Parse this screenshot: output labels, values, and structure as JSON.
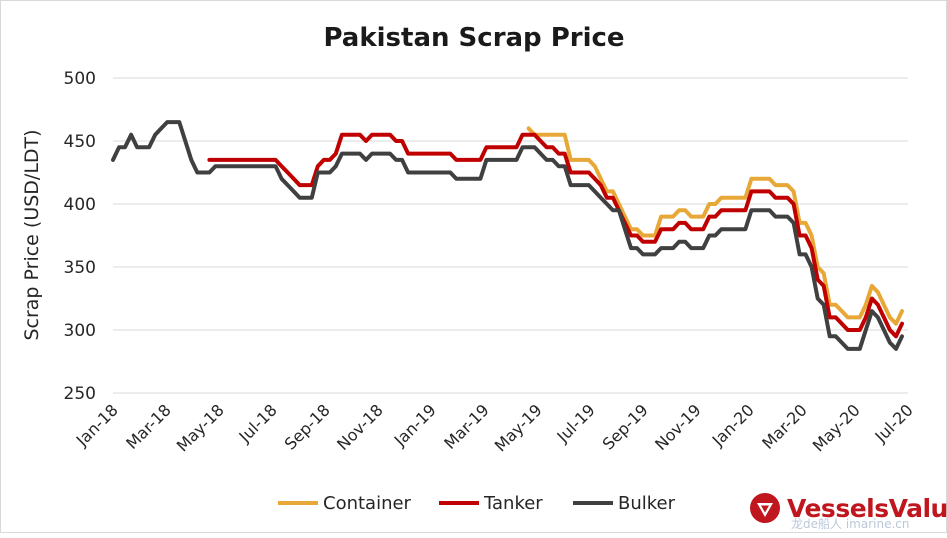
{
  "chart_data": {
    "type": "line",
    "title": "Pakistan Scrap Price",
    "ylabel": "Scrap Price (USD/LDT)",
    "xlabel": "",
    "ylim": [
      250,
      500
    ],
    "yticks": [
      250,
      300,
      350,
      400,
      450,
      500
    ],
    "grid": "horizontal",
    "legend_position": "bottom",
    "x_tick_labels": [
      "Jan-18",
      "Mar-18",
      "May-18",
      "Jul-18",
      "Sep-18",
      "Nov-18",
      "Jan-19",
      "Mar-19",
      "May-19",
      "Jul-19",
      "Sep-19",
      "Nov-19",
      "Jan-20",
      "Mar-20",
      "May-20",
      "Jul-20"
    ],
    "x_range_weeks": [
      0,
      132
    ],
    "series": [
      {
        "name": "Container",
        "color": "#e8a838",
        "points": [
          [
            69,
            460
          ],
          [
            70,
            455
          ],
          [
            71,
            455
          ],
          [
            72,
            455
          ],
          [
            73,
            455
          ],
          [
            74,
            455
          ],
          [
            75,
            455
          ],
          [
            76,
            435
          ],
          [
            77,
            435
          ],
          [
            78,
            435
          ],
          [
            79,
            435
          ],
          [
            80,
            430
          ],
          [
            81,
            420
          ],
          [
            82,
            410
          ],
          [
            83,
            410
          ],
          [
            84,
            400
          ],
          [
            85,
            390
          ],
          [
            86,
            380
          ],
          [
            87,
            380
          ],
          [
            88,
            375
          ],
          [
            89,
            375
          ],
          [
            90,
            375
          ],
          [
            91,
            390
          ],
          [
            92,
            390
          ],
          [
            93,
            390
          ],
          [
            94,
            395
          ],
          [
            95,
            395
          ],
          [
            96,
            390
          ],
          [
            97,
            390
          ],
          [
            98,
            390
          ],
          [
            99,
            400
          ],
          [
            100,
            400
          ],
          [
            101,
            405
          ],
          [
            102,
            405
          ],
          [
            103,
            405
          ],
          [
            104,
            405
          ],
          [
            105,
            405
          ],
          [
            106,
            420
          ],
          [
            107,
            420
          ],
          [
            108,
            420
          ],
          [
            109,
            420
          ],
          [
            110,
            415
          ],
          [
            111,
            415
          ],
          [
            112,
            415
          ],
          [
            113,
            410
          ],
          [
            114,
            385
          ],
          [
            115,
            385
          ],
          [
            116,
            375
          ],
          [
            117,
            350
          ],
          [
            118,
            345
          ],
          [
            119,
            320
          ],
          [
            120,
            320
          ],
          [
            121,
            315
          ],
          [
            122,
            310
          ],
          [
            123,
            310
          ],
          [
            124,
            310
          ],
          [
            125,
            320
          ],
          [
            126,
            335
          ],
          [
            127,
            330
          ],
          [
            128,
            320
          ],
          [
            129,
            310
          ],
          [
            130,
            305
          ],
          [
            131,
            315
          ]
        ]
      },
      {
        "name": "Tanker",
        "color": "#c00000",
        "points": [
          [
            16,
            435
          ],
          [
            17,
            435
          ],
          [
            18,
            435
          ],
          [
            19,
            435
          ],
          [
            20,
            435
          ],
          [
            21,
            435
          ],
          [
            22,
            435
          ],
          [
            23,
            435
          ],
          [
            24,
            435
          ],
          [
            25,
            435
          ],
          [
            26,
            435
          ],
          [
            27,
            435
          ],
          [
            28,
            430
          ],
          [
            29,
            425
          ],
          [
            30,
            420
          ],
          [
            31,
            415
          ],
          [
            32,
            415
          ],
          [
            33,
            415
          ],
          [
            34,
            430
          ],
          [
            35,
            435
          ],
          [
            36,
            435
          ],
          [
            37,
            440
          ],
          [
            38,
            455
          ],
          [
            39,
            455
          ],
          [
            40,
            455
          ],
          [
            41,
            455
          ],
          [
            42,
            450
          ],
          [
            43,
            455
          ],
          [
            44,
            455
          ],
          [
            45,
            455
          ],
          [
            46,
            455
          ],
          [
            47,
            450
          ],
          [
            48,
            450
          ],
          [
            49,
            440
          ],
          [
            50,
            440
          ],
          [
            51,
            440
          ],
          [
            52,
            440
          ],
          [
            53,
            440
          ],
          [
            54,
            440
          ],
          [
            55,
            440
          ],
          [
            56,
            440
          ],
          [
            57,
            435
          ],
          [
            58,
            435
          ],
          [
            59,
            435
          ],
          [
            60,
            435
          ],
          [
            61,
            435
          ],
          [
            62,
            445
          ],
          [
            63,
            445
          ],
          [
            64,
            445
          ],
          [
            65,
            445
          ],
          [
            66,
            445
          ],
          [
            67,
            445
          ],
          [
            68,
            455
          ],
          [
            69,
            455
          ],
          [
            70,
            455
          ],
          [
            71,
            450
          ],
          [
            72,
            445
          ],
          [
            73,
            445
          ],
          [
            74,
            440
          ],
          [
            75,
            440
          ],
          [
            76,
            425
          ],
          [
            77,
            425
          ],
          [
            78,
            425
          ],
          [
            79,
            425
          ],
          [
            80,
            420
          ],
          [
            81,
            415
          ],
          [
            82,
            405
          ],
          [
            83,
            405
          ],
          [
            84,
            395
          ],
          [
            85,
            385
          ],
          [
            86,
            375
          ],
          [
            87,
            375
          ],
          [
            88,
            370
          ],
          [
            89,
            370
          ],
          [
            90,
            370
          ],
          [
            91,
            380
          ],
          [
            92,
            380
          ],
          [
            93,
            380
          ],
          [
            94,
            385
          ],
          [
            95,
            385
          ],
          [
            96,
            380
          ],
          [
            97,
            380
          ],
          [
            98,
            380
          ],
          [
            99,
            390
          ],
          [
            100,
            390
          ],
          [
            101,
            395
          ],
          [
            102,
            395
          ],
          [
            103,
            395
          ],
          [
            104,
            395
          ],
          [
            105,
            395
          ],
          [
            106,
            410
          ],
          [
            107,
            410
          ],
          [
            108,
            410
          ],
          [
            109,
            410
          ],
          [
            110,
            405
          ],
          [
            111,
            405
          ],
          [
            112,
            405
          ],
          [
            113,
            400
          ],
          [
            114,
            375
          ],
          [
            115,
            375
          ],
          [
            116,
            365
          ],
          [
            117,
            340
          ],
          [
            118,
            335
          ],
          [
            119,
            310
          ],
          [
            120,
            310
          ],
          [
            121,
            305
          ],
          [
            122,
            300
          ],
          [
            123,
            300
          ],
          [
            124,
            300
          ],
          [
            125,
            310
          ],
          [
            126,
            325
          ],
          [
            127,
            320
          ],
          [
            128,
            310
          ],
          [
            129,
            300
          ],
          [
            130,
            295
          ],
          [
            131,
            305
          ]
        ]
      },
      {
        "name": "Bulker",
        "color": "#404040",
        "points": [
          [
            0,
            435
          ],
          [
            1,
            445
          ],
          [
            2,
            445
          ],
          [
            3,
            455
          ],
          [
            4,
            445
          ],
          [
            5,
            445
          ],
          [
            6,
            445
          ],
          [
            7,
            455
          ],
          [
            8,
            460
          ],
          [
            9,
            465
          ],
          [
            10,
            465
          ],
          [
            11,
            465
          ],
          [
            12,
            450
          ],
          [
            13,
            435
          ],
          [
            14,
            425
          ],
          [
            15,
            425
          ],
          [
            16,
            425
          ],
          [
            17,
            430
          ],
          [
            18,
            430
          ],
          [
            19,
            430
          ],
          [
            20,
            430
          ],
          [
            21,
            430
          ],
          [
            22,
            430
          ],
          [
            23,
            430
          ],
          [
            24,
            430
          ],
          [
            25,
            430
          ],
          [
            26,
            430
          ],
          [
            27,
            430
          ],
          [
            28,
            420
          ],
          [
            29,
            415
          ],
          [
            30,
            410
          ],
          [
            31,
            405
          ],
          [
            32,
            405
          ],
          [
            33,
            405
          ],
          [
            34,
            425
          ],
          [
            35,
            425
          ],
          [
            36,
            425
          ],
          [
            37,
            430
          ],
          [
            38,
            440
          ],
          [
            39,
            440
          ],
          [
            40,
            440
          ],
          [
            41,
            440
          ],
          [
            42,
            435
          ],
          [
            43,
            440
          ],
          [
            44,
            440
          ],
          [
            45,
            440
          ],
          [
            46,
            440
          ],
          [
            47,
            435
          ],
          [
            48,
            435
          ],
          [
            49,
            425
          ],
          [
            50,
            425
          ],
          [
            51,
            425
          ],
          [
            52,
            425
          ],
          [
            53,
            425
          ],
          [
            54,
            425
          ],
          [
            55,
            425
          ],
          [
            56,
            425
          ],
          [
            57,
            420
          ],
          [
            58,
            420
          ],
          [
            59,
            420
          ],
          [
            60,
            420
          ],
          [
            61,
            420
          ],
          [
            62,
            435
          ],
          [
            63,
            435
          ],
          [
            64,
            435
          ],
          [
            65,
            435
          ],
          [
            66,
            435
          ],
          [
            67,
            435
          ],
          [
            68,
            445
          ],
          [
            69,
            445
          ],
          [
            70,
            445
          ],
          [
            71,
            440
          ],
          [
            72,
            435
          ],
          [
            73,
            435
          ],
          [
            74,
            430
          ],
          [
            75,
            430
          ],
          [
            76,
            415
          ],
          [
            77,
            415
          ],
          [
            78,
            415
          ],
          [
            79,
            415
          ],
          [
            80,
            410
          ],
          [
            81,
            405
          ],
          [
            82,
            400
          ],
          [
            83,
            395
          ],
          [
            84,
            395
          ],
          [
            85,
            380
          ],
          [
            86,
            365
          ],
          [
            87,
            365
          ],
          [
            88,
            360
          ],
          [
            89,
            360
          ],
          [
            90,
            360
          ],
          [
            91,
            365
          ],
          [
            92,
            365
          ],
          [
            93,
            365
          ],
          [
            94,
            370
          ],
          [
            95,
            370
          ],
          [
            96,
            365
          ],
          [
            97,
            365
          ],
          [
            98,
            365
          ],
          [
            99,
            375
          ],
          [
            100,
            375
          ],
          [
            101,
            380
          ],
          [
            102,
            380
          ],
          [
            103,
            380
          ],
          [
            104,
            380
          ],
          [
            105,
            380
          ],
          [
            106,
            395
          ],
          [
            107,
            395
          ],
          [
            108,
            395
          ],
          [
            109,
            395
          ],
          [
            110,
            390
          ],
          [
            111,
            390
          ],
          [
            112,
            390
          ],
          [
            113,
            385
          ],
          [
            114,
            360
          ],
          [
            115,
            360
          ],
          [
            116,
            350
          ],
          [
            117,
            325
          ],
          [
            118,
            320
          ],
          [
            119,
            295
          ],
          [
            120,
            295
          ],
          [
            121,
            290
          ],
          [
            122,
            285
          ],
          [
            123,
            285
          ],
          [
            124,
            285
          ],
          [
            125,
            300
          ],
          [
            126,
            315
          ],
          [
            127,
            310
          ],
          [
            128,
            300
          ],
          [
            129,
            290
          ],
          [
            130,
            285
          ],
          [
            131,
            295
          ]
        ]
      }
    ]
  },
  "branding": {
    "logo_text": "VesselsValue",
    "logo_icon": "vesselsvalue-triangle-logo-icon",
    "watermark_text": "龙de船人 imarine.cn"
  }
}
